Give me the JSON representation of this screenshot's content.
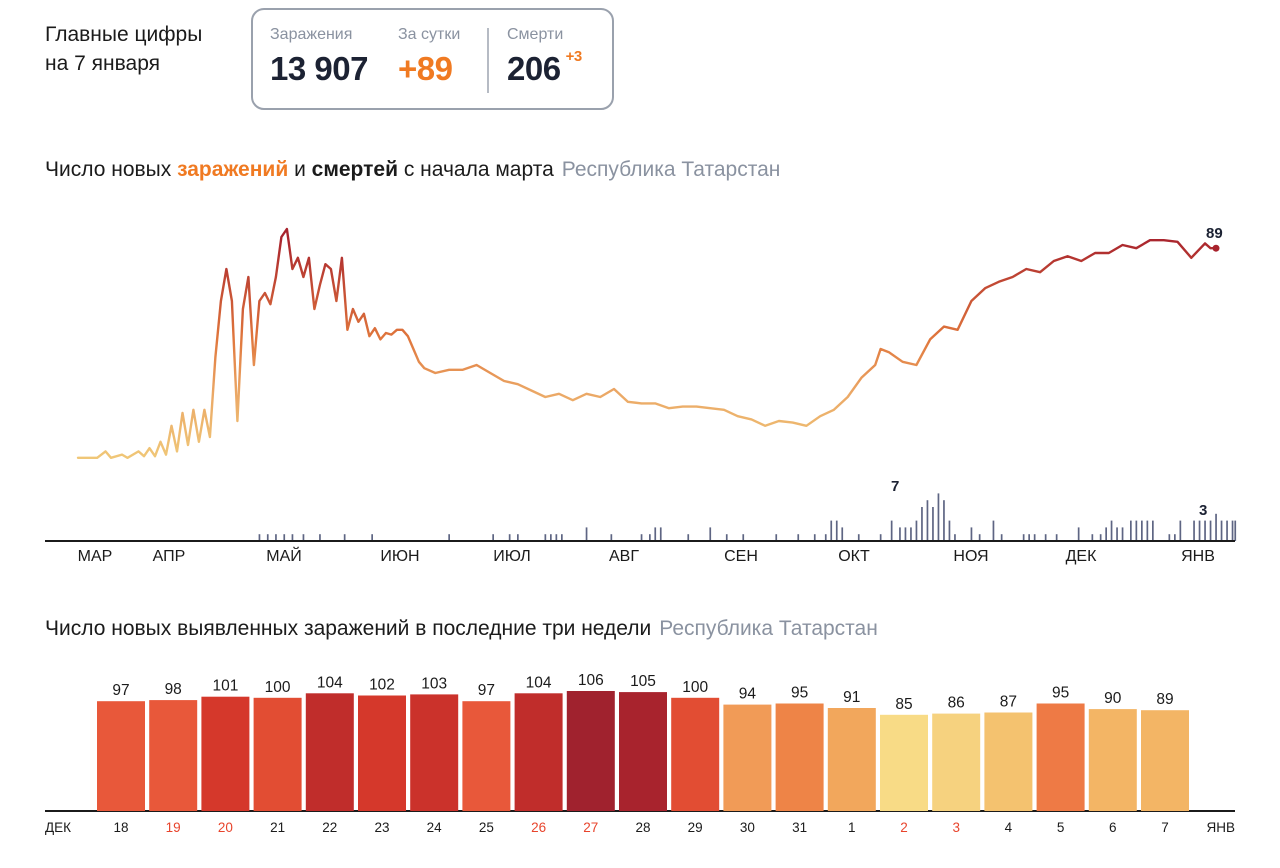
{
  "header": {
    "title_line1": "Главные цифры",
    "title_line2": "на 7 января"
  },
  "stats": {
    "total_label": "Заражения",
    "total_value": "13 907",
    "day_label": "За сутки",
    "day_value": "+89",
    "deaths_label": "Смерти",
    "deaths_value": "206",
    "deaths_delta": "+3"
  },
  "colors": {
    "accent_orange": "#f07a22",
    "death_bars": "#5e6583",
    "axis": "#1b1b1b",
    "muted": "#8a92a0",
    "weekend_red": "#e8442c"
  },
  "section1": {
    "title_pre": "Число новых ",
    "title_hl1": "заражений",
    "title_mid": " и ",
    "title_hl2": "смертей",
    "title_post": " с начала марта",
    "region": "Республика Татарстан"
  },
  "section2": {
    "title": "Число новых выявленных заражений в последние три недели",
    "region": "Республика Татарстан"
  },
  "chart_data": [
    {
      "type": "line",
      "series": [
        {
          "name": "заражения",
          "anchors": [
            [
              0,
              2
            ],
            [
              7,
              2
            ],
            [
              10,
              6
            ],
            [
              12,
              2
            ],
            [
              16,
              4
            ],
            [
              18,
              2
            ],
            [
              22,
              6
            ],
            [
              24,
              3
            ],
            [
              26,
              8
            ],
            [
              28,
              3
            ],
            [
              30,
              12
            ],
            [
              32,
              4
            ],
            [
              34,
              22
            ],
            [
              36,
              6
            ],
            [
              38,
              30
            ],
            [
              40,
              10
            ],
            [
              42,
              32
            ],
            [
              44,
              12
            ],
            [
              46,
              32
            ],
            [
              48,
              15
            ],
            [
              50,
              65
            ],
            [
              52,
              100
            ],
            [
              54,
              120
            ],
            [
              56,
              100
            ],
            [
              58,
              25
            ],
            [
              60,
              95
            ],
            [
              62,
              115
            ],
            [
              64,
              60
            ],
            [
              66,
              100
            ],
            [
              68,
              105
            ],
            [
              70,
              98
            ],
            [
              72,
              115
            ],
            [
              74,
              140
            ],
            [
              76,
              145
            ],
            [
              78,
              120
            ],
            [
              80,
              127
            ],
            [
              82,
              115
            ],
            [
              84,
              127
            ],
            [
              86,
              95
            ],
            [
              88,
              110
            ],
            [
              90,
              123
            ],
            [
              92,
              120
            ],
            [
              94,
              100
            ],
            [
              96,
              127
            ],
            [
              98,
              82
            ],
            [
              100,
              95
            ],
            [
              102,
              87
            ],
            [
              104,
              92
            ],
            [
              106,
              78
            ],
            [
              108,
              83
            ],
            [
              110,
              76
            ],
            [
              112,
              80
            ],
            [
              114,
              79
            ],
            [
              116,
              82
            ],
            [
              118,
              82
            ],
            [
              120,
              78
            ],
            [
              122,
              70
            ],
            [
              124,
              62
            ],
            [
              126,
              58
            ],
            [
              130,
              55
            ],
            [
              135,
              57
            ],
            [
              140,
              57
            ],
            [
              145,
              60
            ],
            [
              150,
              55
            ],
            [
              155,
              50
            ],
            [
              160,
              48
            ],
            [
              165,
              44
            ],
            [
              170,
              40
            ],
            [
              175,
              42
            ],
            [
              180,
              38
            ],
            [
              185,
              42
            ],
            [
              190,
              40
            ],
            [
              195,
              45
            ],
            [
              200,
              37
            ],
            [
              205,
              36
            ],
            [
              210,
              36
            ],
            [
              215,
              33
            ],
            [
              220,
              34
            ],
            [
              225,
              34
            ],
            [
              230,
              33
            ],
            [
              235,
              32
            ],
            [
              240,
              28
            ],
            [
              245,
              26
            ],
            [
              250,
              22
            ],
            [
              255,
              25
            ],
            [
              260,
              24
            ],
            [
              265,
              22
            ],
            [
              270,
              28
            ],
            [
              275,
              32
            ],
            [
              280,
              40
            ],
            [
              285,
              52
            ],
            [
              290,
              60
            ],
            [
              292,
              70
            ],
            [
              295,
              68
            ],
            [
              300,
              62
            ],
            [
              305,
              60
            ],
            [
              310,
              76
            ],
            [
              315,
              84
            ],
            [
              320,
              82
            ],
            [
              325,
              100
            ],
            [
              330,
              108
            ],
            [
              335,
              112
            ],
            [
              340,
              115
            ],
            [
              345,
              120
            ],
            [
              350,
              118
            ],
            [
              355,
              125
            ],
            [
              360,
              128
            ],
            [
              365,
              125
            ],
            [
              370,
              130
            ],
            [
              375,
              130
            ],
            [
              380,
              135
            ],
            [
              385,
              133
            ],
            [
              390,
              138
            ],
            [
              395,
              138
            ],
            [
              400,
              137
            ],
            [
              405,
              127
            ],
            [
              410,
              136
            ],
            [
              412,
              133
            ],
            [
              414,
              133
            ]
          ],
          "last_value": 89
        },
        {
          "name": "смерти",
          "peak_value": 7,
          "last_value": 3
        }
      ],
      "x_axis": [
        "МАР",
        "АПР",
        "МАЙ",
        "ИЮН",
        "ИЮЛ",
        "АВГ",
        "СЕН",
        "ОКТ",
        "НОЯ",
        "ДЕК",
        "ЯНВ"
      ],
      "ylim": [
        0,
        140
      ]
    },
    {
      "type": "bar",
      "categories": [
        "18",
        "19",
        "20",
        "21",
        "22",
        "23",
        "24",
        "25",
        "26",
        "27",
        "28",
        "29",
        "30",
        "31",
        "1",
        "2",
        "3",
        "4",
        "5",
        "6",
        "7"
      ],
      "values": [
        97,
        98,
        101,
        100,
        104,
        102,
        103,
        97,
        104,
        106,
        105,
        100,
        94,
        95,
        91,
        85,
        86,
        87,
        95,
        90,
        89
      ],
      "weekend": [
        false,
        true,
        true,
        false,
        false,
        false,
        false,
        false,
        true,
        true,
        false,
        false,
        false,
        false,
        false,
        true,
        true,
        false,
        false,
        false,
        false
      ],
      "month_start": "ДЕК",
      "month_end": "ЯНВ",
      "colors": [
        "#e8583a",
        "#e8583a",
        "#d5382b",
        "#e24d33",
        "#c02d2b",
        "#d5382b",
        "#cb322b",
        "#e8583a",
        "#c02d2b",
        "#a0222e",
        "#a8232d",
        "#e24d33",
        "#f19b57",
        "#ee8447",
        "#f2a75c",
        "#f8db86",
        "#f6d27f",
        "#f4c26f",
        "#ee7a45",
        "#f3b565",
        "#f3b565"
      ],
      "ylim": [
        0,
        106
      ]
    }
  ]
}
